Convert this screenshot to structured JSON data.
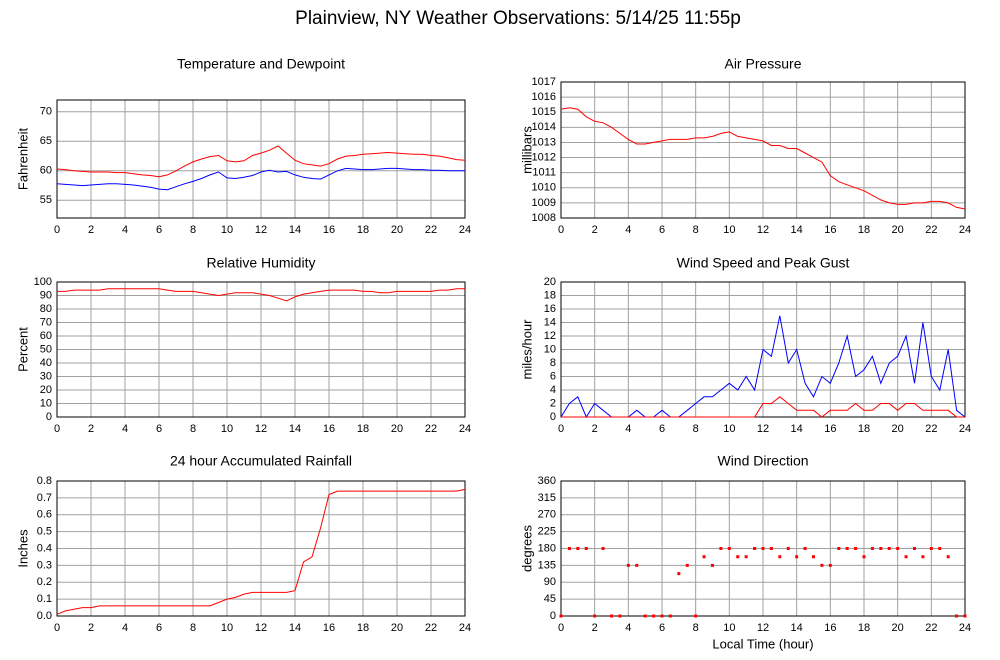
{
  "title": "Plainview, NY Weather Observations: 5/14/25 11:55p",
  "chart_data": [
    {
      "type": "line",
      "title": "Temperature and Dewpoint",
      "ylabel": "Fahrenheit",
      "x": [
        0,
        0.5,
        1,
        1.5,
        2,
        2.5,
        3,
        3.5,
        4,
        4.5,
        5,
        5.5,
        6,
        6.5,
        7,
        7.5,
        8,
        8.5,
        9,
        9.5,
        10,
        10.5,
        11,
        11.5,
        12,
        12.5,
        13,
        13.5,
        14,
        14.5,
        15,
        15.5,
        16,
        16.5,
        17,
        17.5,
        18,
        18.5,
        19,
        19.5,
        20,
        20.5,
        21,
        21.5,
        22,
        22.5,
        23,
        23.5,
        24
      ],
      "series": [
        {
          "color": "#ff0000",
          "values": [
            60.3,
            60.2,
            60.0,
            59.9,
            59.8,
            59.8,
            59.8,
            59.7,
            59.7,
            59.5,
            59.3,
            59.2,
            59.0,
            59.3,
            60.0,
            60.8,
            61.5,
            62.0,
            62.4,
            62.6,
            61.7,
            61.5,
            61.7,
            62.6,
            63.0,
            63.5,
            64.2,
            63.0,
            61.8,
            61.2,
            61.0,
            60.8,
            61.2,
            62.0,
            62.5,
            62.6,
            62.8,
            62.9,
            63.0,
            63.1,
            63.0,
            62.9,
            62.8,
            62.8,
            62.6,
            62.5,
            62.2,
            61.9,
            61.8
          ]
        },
        {
          "color": "#0000ff",
          "values": [
            57.8,
            57.7,
            57.6,
            57.5,
            57.6,
            57.7,
            57.8,
            57.8,
            57.7,
            57.6,
            57.4,
            57.2,
            56.9,
            56.8,
            57.3,
            57.8,
            58.2,
            58.7,
            59.3,
            59.8,
            58.8,
            58.7,
            58.9,
            59.2,
            59.8,
            60.1,
            59.8,
            59.9,
            59.3,
            58.9,
            58.7,
            58.6,
            59.3,
            60.0,
            60.4,
            60.3,
            60.2,
            60.2,
            60.3,
            60.4,
            60.4,
            60.3,
            60.2,
            60.2,
            60.1,
            60.1,
            60.0,
            60.0,
            60.0
          ]
        }
      ],
      "xlim": [
        0,
        24
      ],
      "xticks": [
        0,
        2,
        4,
        6,
        8,
        10,
        12,
        14,
        16,
        18,
        20,
        22,
        24
      ],
      "ylim": [
        52,
        72
      ],
      "yticks": [
        55,
        60,
        65,
        70
      ],
      "grid": true
    },
    {
      "type": "line",
      "title": "Air Pressure",
      "ylabel": "millibars",
      "x": [
        0,
        0.5,
        1,
        1.5,
        2,
        2.5,
        3,
        3.5,
        4,
        4.5,
        5,
        5.5,
        6,
        6.5,
        7,
        7.5,
        8,
        8.5,
        9,
        9.5,
        10,
        10.5,
        11,
        11.5,
        12,
        12.5,
        13,
        13.5,
        14,
        14.5,
        15,
        15.5,
        16,
        16.5,
        17,
        17.5,
        18,
        18.5,
        19,
        19.5,
        20,
        20.5,
        21,
        21.5,
        22,
        22.5,
        23,
        23.5,
        24
      ],
      "series": [
        {
          "color": "#ff0000",
          "values": [
            1015.2,
            1015.3,
            1015.2,
            1014.7,
            1014.4,
            1014.3,
            1014.0,
            1013.6,
            1013.2,
            1012.9,
            1012.9,
            1013.0,
            1013.1,
            1013.2,
            1013.2,
            1013.2,
            1013.3,
            1013.3,
            1013.4,
            1013.6,
            1013.7,
            1013.4,
            1013.3,
            1013.2,
            1013.1,
            1012.8,
            1012.8,
            1012.6,
            1012.6,
            1012.3,
            1012.0,
            1011.7,
            1010.8,
            1010.4,
            1010.2,
            1010.0,
            1009.8,
            1009.5,
            1009.2,
            1009.0,
            1008.9,
            1008.9,
            1009.0,
            1009.0,
            1009.1,
            1009.1,
            1009.0,
            1008.7,
            1008.6
          ]
        }
      ],
      "xlim": [
        0,
        24
      ],
      "xticks": [
        0,
        2,
        4,
        6,
        8,
        10,
        12,
        14,
        16,
        18,
        20,
        22,
        24
      ],
      "ylim": [
        1008,
        1017
      ],
      "yticks": [
        1008,
        1009,
        1010,
        1011,
        1012,
        1013,
        1014,
        1015,
        1016,
        1017
      ],
      "grid": true
    },
    {
      "type": "line",
      "title": "Relative Humidity",
      "ylabel": "Percent",
      "x": [
        0,
        0.5,
        1,
        1.5,
        2,
        2.5,
        3,
        3.5,
        4,
        4.5,
        5,
        5.5,
        6,
        6.5,
        7,
        7.5,
        8,
        8.5,
        9,
        9.5,
        10,
        10.5,
        11,
        11.5,
        12,
        12.5,
        13,
        13.5,
        14,
        14.5,
        15,
        15.5,
        16,
        16.5,
        17,
        17.5,
        18,
        18.5,
        19,
        19.5,
        20,
        20.5,
        21,
        21.5,
        22,
        22.5,
        23,
        23.5,
        24
      ],
      "series": [
        {
          "color": "#ff0000",
          "values": [
            93,
            93,
            94,
            94,
            94,
            94,
            95,
            95,
            95,
            95,
            95,
            95,
            95,
            94,
            93,
            93,
            93,
            92,
            91,
            90,
            91,
            92,
            92,
            92,
            91,
            90,
            88,
            86,
            89,
            91,
            92,
            93,
            94,
            94,
            94,
            94,
            93,
            93,
            92,
            92,
            93,
            93,
            93,
            93,
            93,
            94,
            94,
            95,
            95
          ]
        }
      ],
      "xlim": [
        0,
        24
      ],
      "xticks": [
        0,
        2,
        4,
        6,
        8,
        10,
        12,
        14,
        16,
        18,
        20,
        22,
        24
      ],
      "ylim": [
        0,
        100
      ],
      "yticks": [
        0,
        10,
        20,
        30,
        40,
        50,
        60,
        70,
        80,
        90,
        100
      ],
      "grid": true
    },
    {
      "type": "line",
      "title": "Wind Speed and Peak Gust",
      "ylabel": "miles/hour",
      "x": [
        0,
        0.5,
        1,
        1.5,
        2,
        2.5,
        3,
        3.5,
        4,
        4.5,
        5,
        5.5,
        6,
        6.5,
        7,
        7.5,
        8,
        8.5,
        9,
        9.5,
        10,
        10.5,
        11,
        11.5,
        12,
        12.5,
        13,
        13.5,
        14,
        14.5,
        15,
        15.5,
        16,
        16.5,
        17,
        17.5,
        18,
        18.5,
        19,
        19.5,
        20,
        20.5,
        21,
        21.5,
        22,
        22.5,
        23,
        23.5,
        24
      ],
      "series": [
        {
          "color": "#0000ff",
          "values": [
            0,
            2,
            3,
            0,
            2,
            1,
            0,
            0,
            0,
            1,
            0,
            0,
            1,
            0,
            0,
            1,
            2,
            3,
            3,
            4,
            5,
            4,
            6,
            4,
            10,
            9,
            15,
            8,
            10,
            5,
            3,
            6,
            5,
            8,
            12,
            6,
            7,
            9,
            5,
            8,
            9,
            12,
            5,
            14,
            6,
            4,
            10,
            1,
            0
          ]
        },
        {
          "color": "#ff0000",
          "values": [
            0,
            0,
            0,
            0,
            0,
            0,
            0,
            0,
            0,
            0,
            0,
            0,
            0,
            0,
            0,
            0,
            0,
            0,
            0,
            0,
            0,
            0,
            0,
            0,
            2,
            2,
            3,
            2,
            1,
            1,
            1,
            0,
            1,
            1,
            1,
            2,
            1,
            1,
            2,
            2,
            1,
            2,
            2,
            1,
            1,
            1,
            1,
            0,
            0
          ]
        }
      ],
      "xlim": [
        0,
        24
      ],
      "xticks": [
        0,
        2,
        4,
        6,
        8,
        10,
        12,
        14,
        16,
        18,
        20,
        22,
        24
      ],
      "ylim": [
        0,
        20
      ],
      "yticks": [
        0,
        2,
        4,
        6,
        8,
        10,
        12,
        14,
        16,
        18,
        20
      ],
      "grid": true
    },
    {
      "type": "line",
      "title": "24 hour Accumulated Rainfall",
      "ylabel": "Inches",
      "x": [
        0,
        0.5,
        1,
        1.5,
        2,
        2.5,
        3,
        3.5,
        4,
        4.5,
        5,
        5.5,
        6,
        6.5,
        7,
        7.5,
        8,
        8.5,
        9,
        9.5,
        10,
        10.5,
        11,
        11.5,
        12,
        12.5,
        13,
        13.5,
        14,
        14.5,
        15,
        15.5,
        16,
        16.5,
        17,
        17.5,
        18,
        18.5,
        19,
        19.5,
        20,
        20.5,
        21,
        21.5,
        22,
        22.5,
        23,
        23.5,
        24
      ],
      "series": [
        {
          "color": "#ff0000",
          "values": [
            0.01,
            0.03,
            0.04,
            0.05,
            0.05,
            0.06,
            0.06,
            0.06,
            0.06,
            0.06,
            0.06,
            0.06,
            0.06,
            0.06,
            0.06,
            0.06,
            0.06,
            0.06,
            0.06,
            0.08,
            0.1,
            0.11,
            0.13,
            0.14,
            0.14,
            0.14,
            0.14,
            0.14,
            0.15,
            0.32,
            0.35,
            0.52,
            0.72,
            0.74,
            0.74,
            0.74,
            0.74,
            0.74,
            0.74,
            0.74,
            0.74,
            0.74,
            0.74,
            0.74,
            0.74,
            0.74,
            0.74,
            0.74,
            0.75
          ]
        }
      ],
      "xlim": [
        0,
        24
      ],
      "xticks": [
        0,
        2,
        4,
        6,
        8,
        10,
        12,
        14,
        16,
        18,
        20,
        22,
        24
      ],
      "ylim": [
        0,
        0.8
      ],
      "yticks": [
        {
          "value": 0,
          "label": "0.0"
        },
        0.1,
        0.2,
        0.3,
        0.4,
        0.5,
        0.6,
        0.7,
        0.8
      ],
      "grid": true
    },
    {
      "type": "scatter",
      "title": "Wind Direction",
      "ylabel": "degrees",
      "xlabel": "Local Time (hour)",
      "x": [
        0,
        0.5,
        1,
        1.5,
        2,
        2.5,
        3,
        3.5,
        4,
        4.5,
        5,
        5.5,
        6,
        6.5,
        7,
        7.5,
        8,
        8.5,
        9,
        9.5,
        10,
        10.5,
        11,
        11.5,
        12,
        12.5,
        13,
        13.5,
        14,
        14.5,
        15,
        15.5,
        16,
        16.5,
        17,
        17.5,
        18,
        18.5,
        19,
        19.5,
        20,
        20.5,
        21,
        21.5,
        22,
        22.5,
        23,
        23.5,
        24
      ],
      "series": [
        {
          "color": "#ff0000",
          "values": [
            0,
            180,
            180,
            180,
            0,
            180,
            0,
            0,
            135,
            135,
            0,
            0,
            0,
            0,
            113,
            135,
            0,
            158,
            135,
            180,
            180,
            158,
            158,
            180,
            180,
            180,
            158,
            180,
            158,
            180,
            158,
            135,
            135,
            180,
            180,
            180,
            158,
            180,
            180,
            180,
            180,
            158,
            180,
            158,
            180,
            180,
            158,
            0,
            0
          ]
        }
      ],
      "xlim": [
        0,
        24
      ],
      "xticks": [
        0,
        2,
        4,
        6,
        8,
        10,
        12,
        14,
        16,
        18,
        20,
        22,
        24
      ],
      "ylim": [
        0,
        360
      ],
      "yticks": [
        0,
        45,
        90,
        135,
        180,
        225,
        270,
        315,
        360
      ],
      "grid": true
    }
  ]
}
